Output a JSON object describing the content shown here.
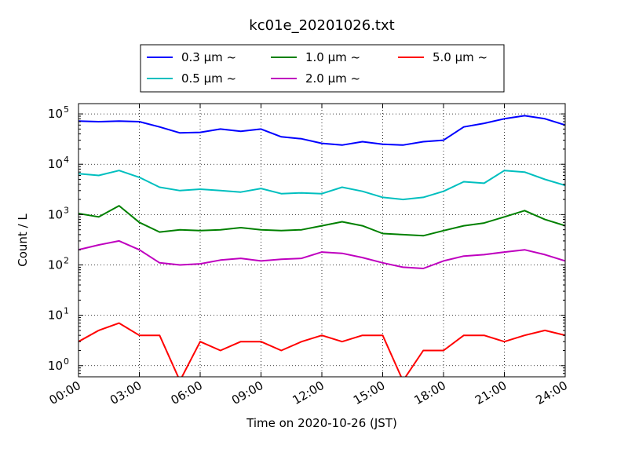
{
  "chart_data": {
    "type": "line",
    "title": "kc01e_20201026.txt",
    "xlabel": "Time on 2020-10-26 (JST)",
    "ylabel": "Count / L",
    "yscale": "log",
    "xlim": [
      "00:00",
      "24:00"
    ],
    "ylim": [
      0.6,
      160000
    ],
    "grid": true,
    "legend_position": "top-center",
    "x_ticks": [
      "00:00",
      "03:00",
      "06:00",
      "09:00",
      "12:00",
      "15:00",
      "18:00",
      "21:00",
      "24:00"
    ],
    "y_ticks": [
      {
        "value": 1,
        "label": "10",
        "exp": "0"
      },
      {
        "value": 10,
        "label": "10",
        "exp": "1"
      },
      {
        "value": 100,
        "label": "10",
        "exp": "2"
      },
      {
        "value": 1000,
        "label": "10",
        "exp": "3"
      },
      {
        "value": 10000,
        "label": "10",
        "exp": "4"
      },
      {
        "value": 100000,
        "label": "10",
        "exp": "5"
      }
    ],
    "x_hours": [
      0,
      1,
      2,
      3,
      4,
      5,
      6,
      7,
      8,
      9,
      10,
      11,
      12,
      13,
      14,
      15,
      16,
      17,
      18,
      19,
      20,
      21,
      22,
      23,
      24
    ],
    "series": [
      {
        "name": "0.3 μm ~",
        "color": "#0000ff",
        "values": [
          72000,
          70000,
          72000,
          70000,
          55000,
          42000,
          43000,
          50000,
          45000,
          50000,
          35000,
          32000,
          26000,
          24000,
          28000,
          25000,
          24000,
          28000,
          30000,
          55000,
          65000,
          80000,
          92000,
          80000,
          60000
        ]
      },
      {
        "name": "0.5 μm ~",
        "color": "#00bfbf",
        "values": [
          6500,
          6000,
          7500,
          5500,
          3500,
          3000,
          3200,
          3000,
          2800,
          3300,
          2600,
          2700,
          2600,
          3500,
          2900,
          2200,
          2000,
          2200,
          2900,
          4500,
          4200,
          7500,
          7000,
          5000,
          3800
        ]
      },
      {
        "name": "1.0 μm ~",
        "color": "#008000",
        "values": [
          1050,
          900,
          1500,
          700,
          450,
          500,
          480,
          500,
          550,
          500,
          480,
          500,
          600,
          720,
          600,
          420,
          400,
          380,
          480,
          600,
          680,
          900,
          1200,
          800,
          600
        ]
      },
      {
        "name": "2.0 μm ~",
        "color": "#bf00bf",
        "values": [
          200,
          250,
          300,
          200,
          110,
          100,
          105,
          125,
          135,
          120,
          130,
          135,
          180,
          170,
          140,
          110,
          90,
          85,
          120,
          150,
          160,
          180,
          200,
          160,
          120
        ]
      },
      {
        "name": "5.0 μm ~",
        "color": "#ff0000",
        "values": [
          3,
          5,
          7,
          4,
          4,
          0.5,
          3,
          2,
          3,
          3,
          2,
          3,
          4,
          3,
          4,
          4,
          0.5,
          2,
          2,
          4,
          4,
          3,
          4,
          5,
          4
        ]
      }
    ]
  }
}
